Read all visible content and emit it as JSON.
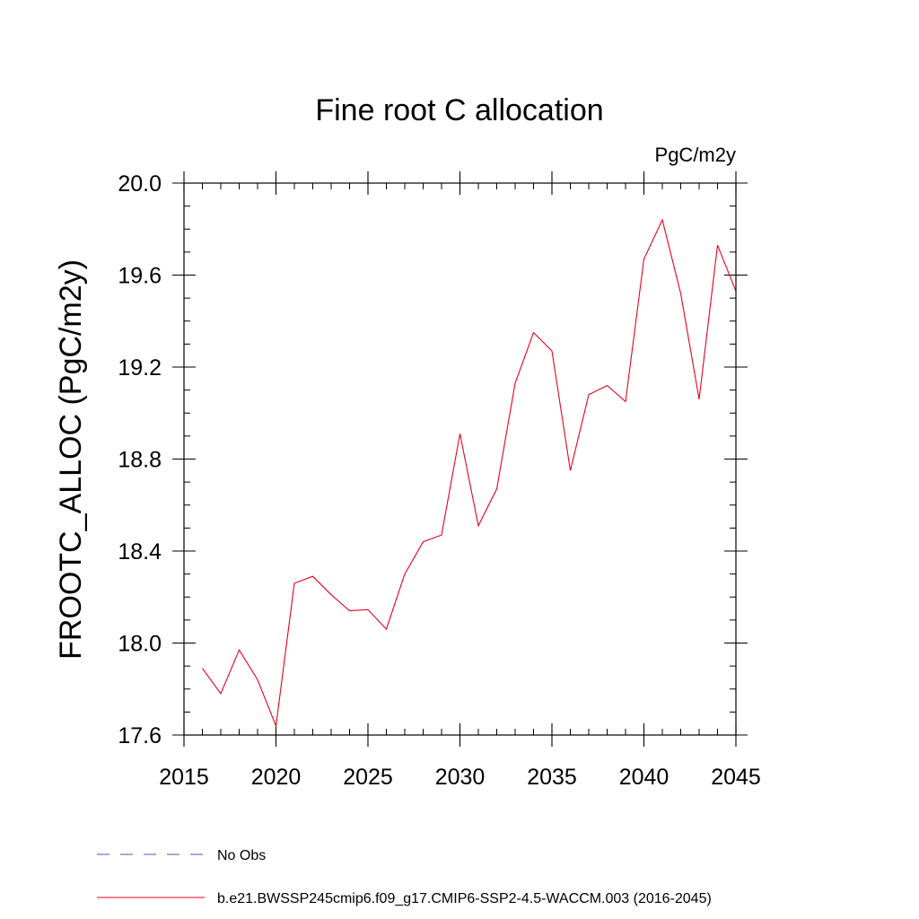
{
  "chart_data": {
    "type": "line",
    "title": "Fine root C allocation",
    "units_label": "PgC/m2y",
    "xlabel": "",
    "ylabel": "FROOTC_ALLOC  (PgC/m2y)",
    "xlim": [
      2015,
      2045
    ],
    "ylim": [
      17.6,
      20.0
    ],
    "x_ticks": [
      2015,
      2020,
      2025,
      2030,
      2035,
      2040,
      2045
    ],
    "x_tick_labels": [
      "2015",
      "2020",
      "2025",
      "2030",
      "2035",
      "2040",
      "2045"
    ],
    "y_ticks": [
      17.6,
      18.0,
      18.4,
      18.8,
      19.2,
      19.6,
      20.0
    ],
    "y_tick_labels": [
      "17.6",
      "18.0",
      "18.4",
      "18.8",
      "19.2",
      "19.6",
      "20.0"
    ],
    "x_minor_step": 1,
    "y_minor_step": 0.1,
    "grid": false,
    "legend_position": "bottom",
    "series": [
      {
        "name": "b.e21.BWSSP245cmip6.f09_g17.CMIP6-SSP2-4.5-WACCM.003 (2016-2045)",
        "color": "#e8001c",
        "style": "solid",
        "x": [
          2016,
          2017,
          2018,
          2019,
          2020,
          2021,
          2022,
          2023,
          2024,
          2025,
          2026,
          2027,
          2028,
          2029,
          2030,
          2031,
          2032,
          2033,
          2034,
          2035,
          2036,
          2037,
          2038,
          2039,
          2040,
          2041,
          2042,
          2043,
          2044,
          2045
        ],
        "values": [
          17.89,
          17.78,
          17.97,
          17.84,
          17.64,
          18.26,
          18.29,
          18.21,
          18.14,
          18.145,
          18.06,
          18.3,
          18.44,
          18.47,
          18.91,
          18.51,
          18.67,
          19.13,
          19.35,
          19.27,
          18.75,
          19.08,
          19.12,
          19.05,
          19.67,
          19.84,
          19.52,
          19.06,
          19.73,
          19.53
        ]
      }
    ],
    "legend": [
      {
        "label": "No Obs",
        "color": "#5a4fb0",
        "style": "dashed"
      },
      {
        "label": "b.e21.BWSSP245cmip6.f09_g17.CMIP6-SSP2-4.5-WACCM.003 (2016-2045)",
        "color": "#e8001c",
        "style": "solid"
      }
    ]
  }
}
